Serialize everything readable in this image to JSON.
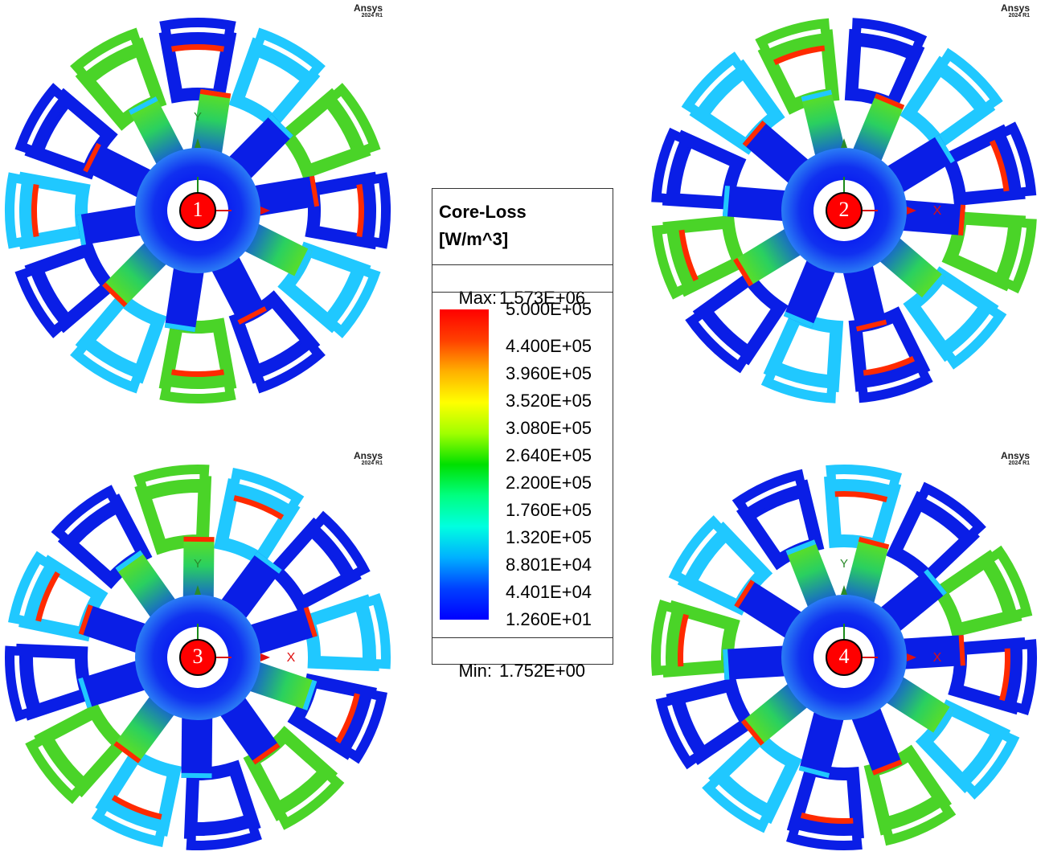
{
  "legend": {
    "title_line1": "Core-Loss",
    "title_line2": "[W/m^3]",
    "max_label": "Max:",
    "max_value": "1.573E+06",
    "min_label": "Min:",
    "min_value": "1.752E+00",
    "ticks": [
      "5.000E+05",
      "4.400E+05",
      "3.960E+05",
      "3.520E+05",
      "3.080E+05",
      "2.640E+05",
      "2.200E+05",
      "1.760E+05",
      "1.320E+05",
      "8.801E+04",
      "4.401E+04",
      "1.260E+01"
    ],
    "colors": [
      "#ff0000",
      "#ff6a00",
      "#ffb000",
      "#ffff00",
      "#a8ff00",
      "#00e000",
      "#00ff70",
      "#00ffd0",
      "#00c8ff",
      "#0070ff",
      "#0000ff"
    ]
  },
  "watermark": {
    "brand": "Ansys",
    "version": "2024 R1"
  },
  "panels": [
    {
      "label": "1",
      "axis_y": "Y",
      "axis_x": ""
    },
    {
      "label": "2",
      "axis_y": "",
      "axis_x": "X"
    },
    {
      "label": "3",
      "axis_y": "Y",
      "axis_x": "X"
    },
    {
      "label": "4",
      "axis_y": "Y",
      "axis_x": "X"
    }
  ],
  "colors": {
    "low": "#0a1ee6",
    "mid": "#20c8ff",
    "green": "#4ad428",
    "high": "#ff2a00",
    "marker": "#ff0000"
  }
}
